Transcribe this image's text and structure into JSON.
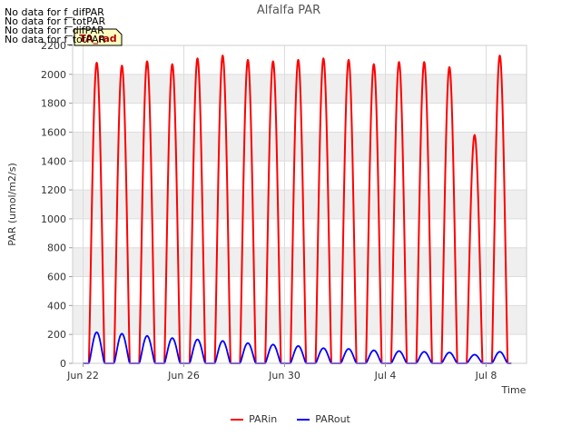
{
  "no_data_notes": [
    "No data for f_difPAR",
    "No data for f_totPAR",
    "No data for f_difPAR",
    "No data for f_totPAR"
  ],
  "tooltip_label": "TA_rad",
  "chart_data": {
    "type": "line",
    "title": "Alfalfa PAR",
    "xlabel": "Time",
    "ylabel": "PAR (umol/m2/s)",
    "ylim": [
      0,
      2200
    ],
    "yticks": [
      0,
      200,
      400,
      600,
      800,
      1000,
      1200,
      1400,
      1600,
      1800,
      2000,
      2200
    ],
    "xlim_days": [
      0,
      18
    ],
    "xticks": [
      {
        "day": 0,
        "label": "Jun 22"
      },
      {
        "day": 4,
        "label": "Jun 26"
      },
      {
        "day": 8,
        "label": "Jun 30"
      },
      {
        "day": 12,
        "label": "Jul 4"
      },
      {
        "day": 16,
        "label": "Jul 8"
      }
    ],
    "daylight_hours": [
      5.5,
      20.5
    ],
    "series": [
      {
        "name": "PARin",
        "color": "#ff0000",
        "daily_peaks": [
          2080,
          2060,
          2090,
          2070,
          2110,
          2130,
          2100,
          2090,
          2100,
          2110,
          2100,
          2070,
          2085,
          2085,
          2050,
          1580,
          2130
        ]
      },
      {
        "name": "PARout",
        "color": "#0000ff",
        "daily_peaks": [
          215,
          205,
          190,
          175,
          165,
          155,
          140,
          130,
          120,
          105,
          100,
          90,
          85,
          80,
          75,
          60,
          80
        ]
      }
    ]
  }
}
